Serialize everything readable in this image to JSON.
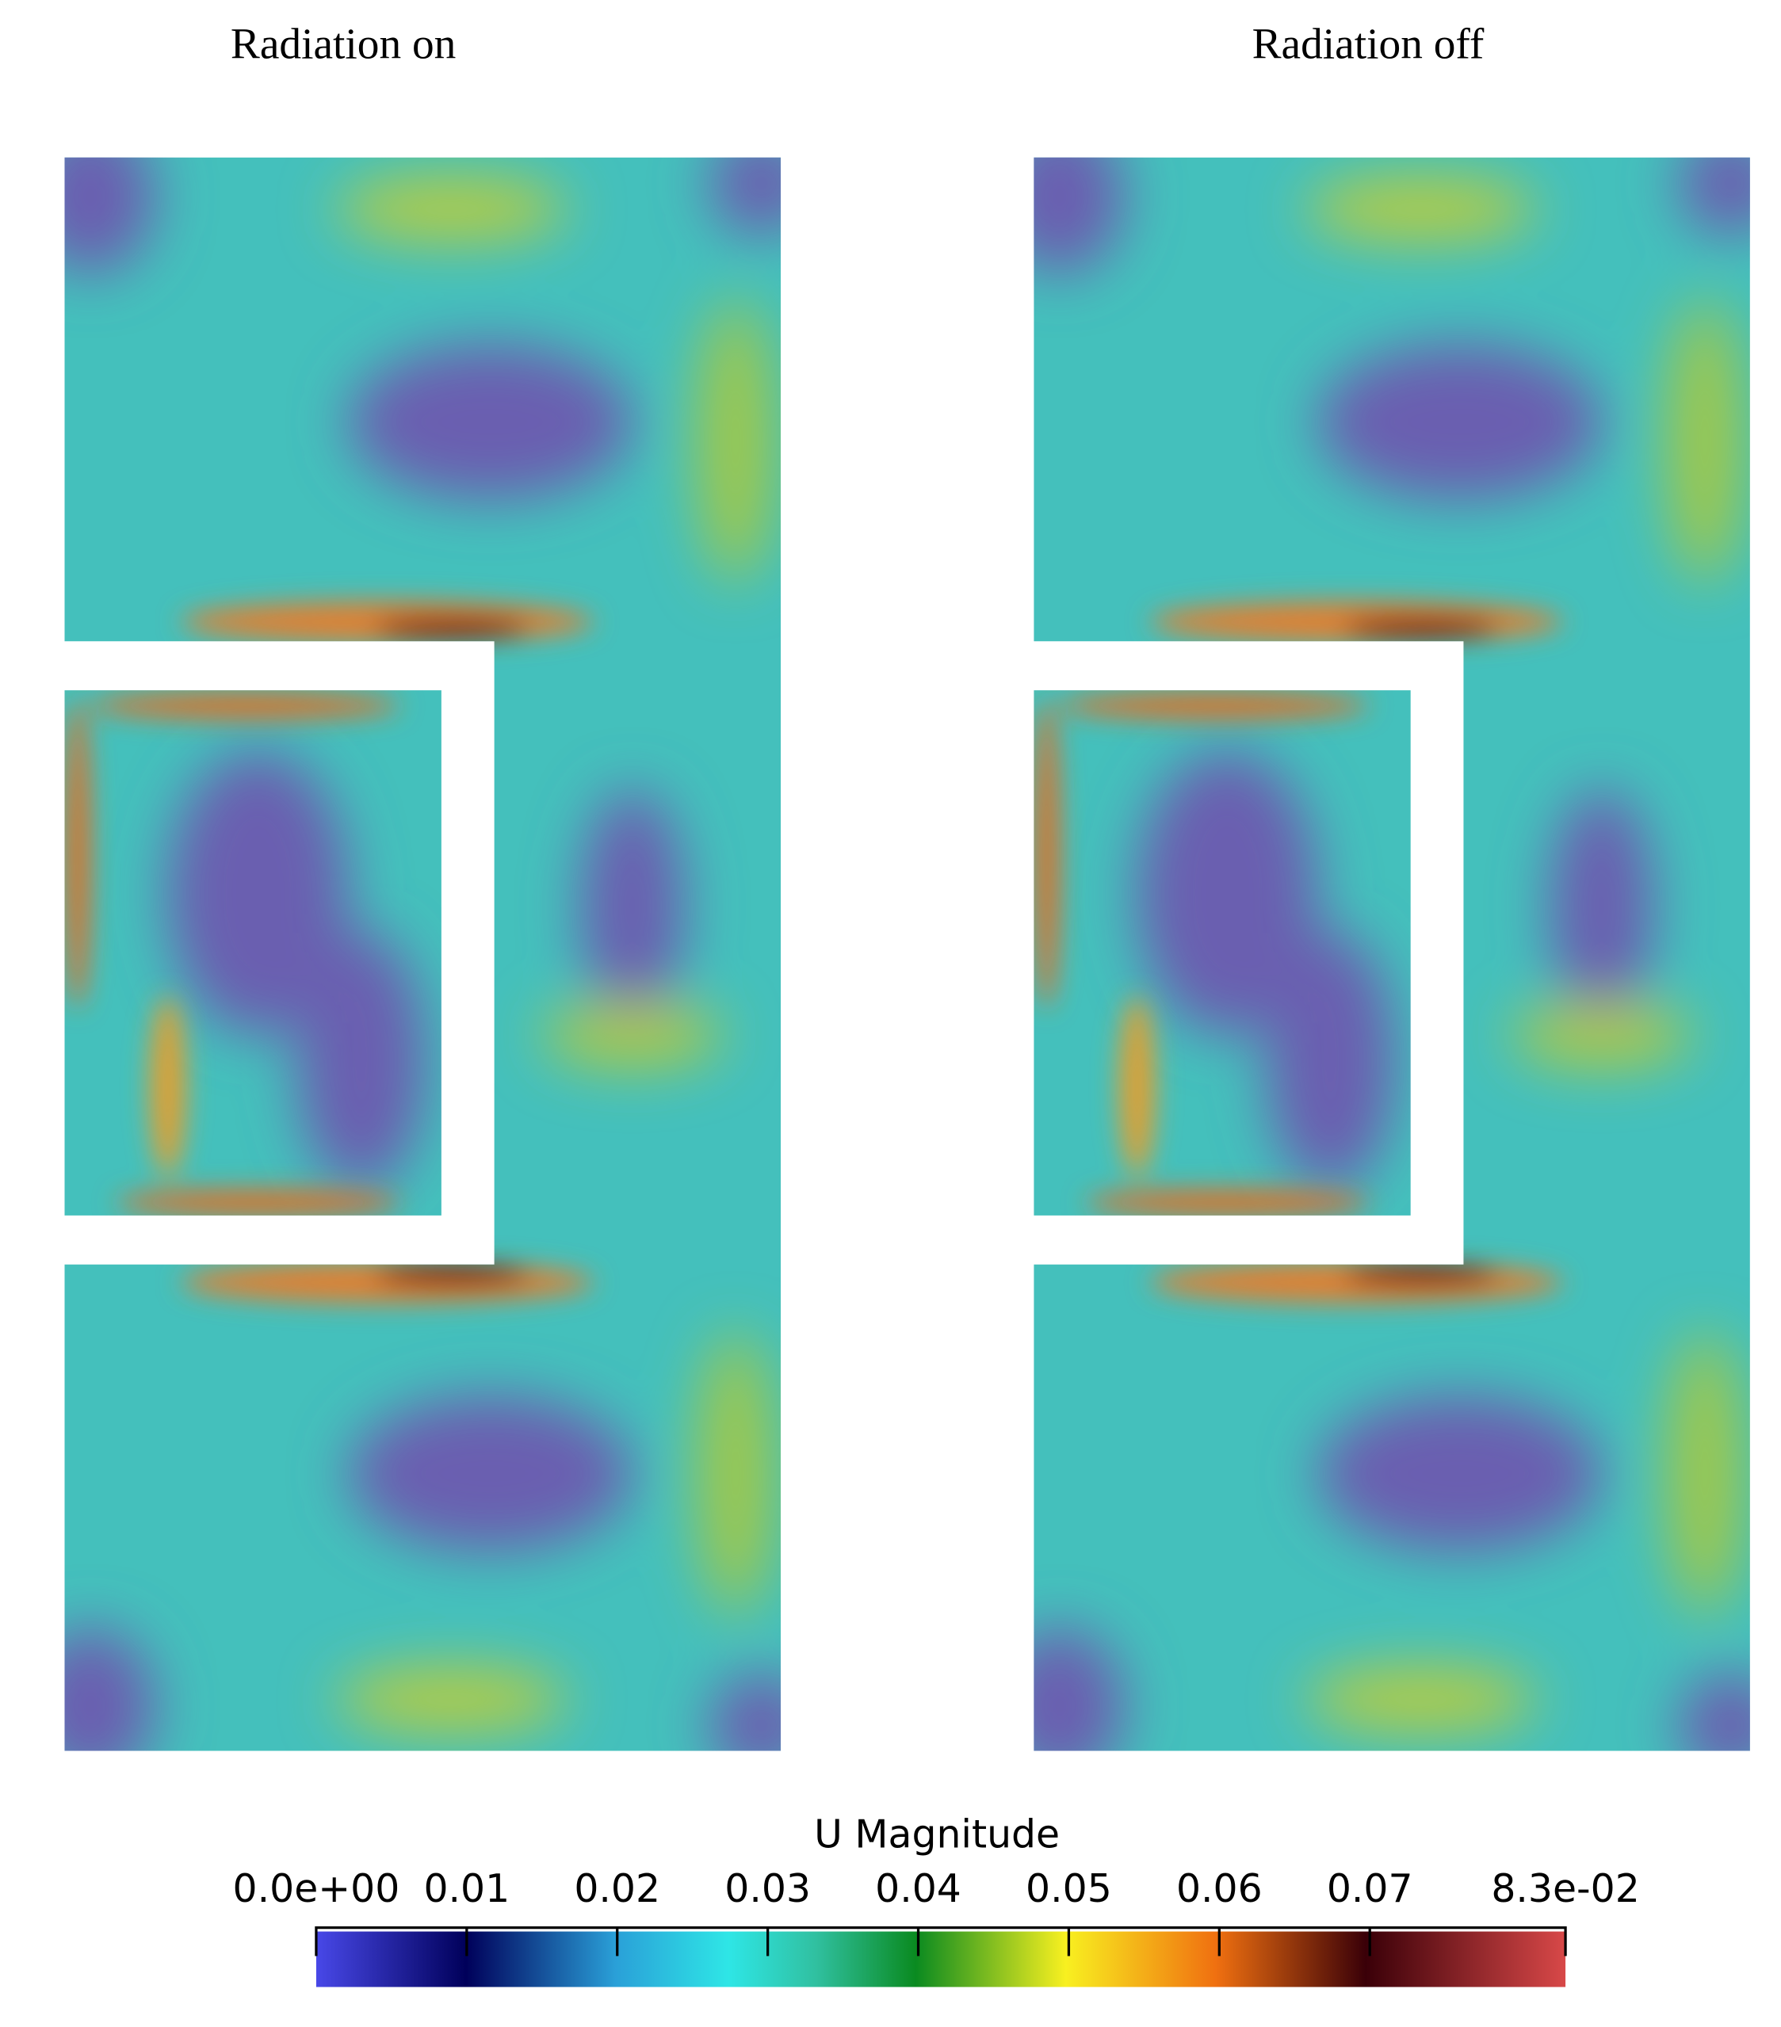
{
  "panels": [
    {
      "title": "Radiation on"
    },
    {
      "title": "Radiation off"
    }
  ],
  "colorbar": {
    "title": "U Magnitude",
    "clim": [
      0,
      0.083
    ],
    "ticks": [
      {
        "value": 0,
        "label": "0.0e+00"
      },
      0.01,
      0.02,
      0.03,
      0.04,
      0.05,
      0.06,
      0.07,
      {
        "value": 0.083,
        "label": "8.3e-02"
      }
    ]
  }
}
